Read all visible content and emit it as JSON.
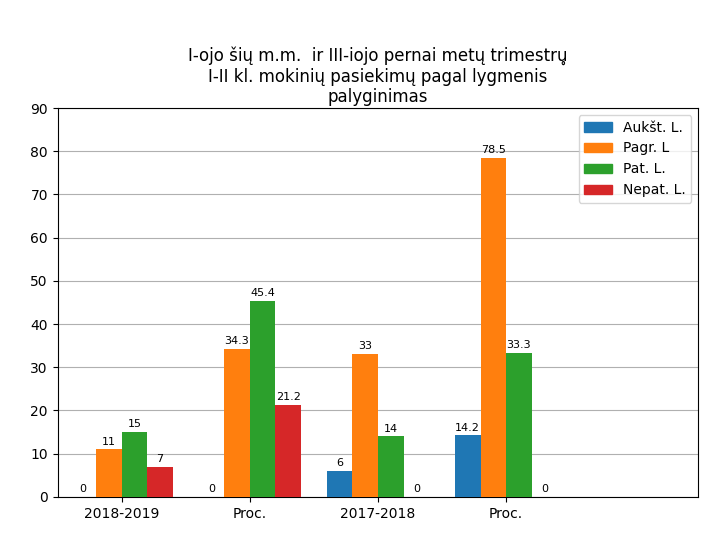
{
  "chart_data": {
    "type": "bar",
    "title": "I-ojo šių m.m.  ir III-iojo pernai metų trimestru̥\nI-II kl. mokinių pasiekimų pagal lygmenis\npalyginimas",
    "categories": [
      "2018-2019",
      "Proc.",
      "2017-2018",
      "Proc."
    ],
    "series": [
      {
        "name": "Aukšt. L.",
        "values": [
          0,
          0,
          6,
          14.2
        ]
      },
      {
        "name": "Pagr. L",
        "values": [
          11,
          34.3,
          33,
          78.5
        ]
      },
      {
        "name": "Pat. L.",
        "values": [
          15,
          45.4,
          14,
          33.3
        ]
      },
      {
        "name": "Nepat. L.",
        "values": [
          7,
          21.2,
          0,
          0
        ]
      }
    ],
    "ylim": [
      0,
      90
    ],
    "yticks": [
      0,
      10,
      20,
      30,
      40,
      50,
      60,
      70,
      80,
      90
    ],
    "grid": true,
    "legend": "upper right",
    "data_labels": true
  }
}
